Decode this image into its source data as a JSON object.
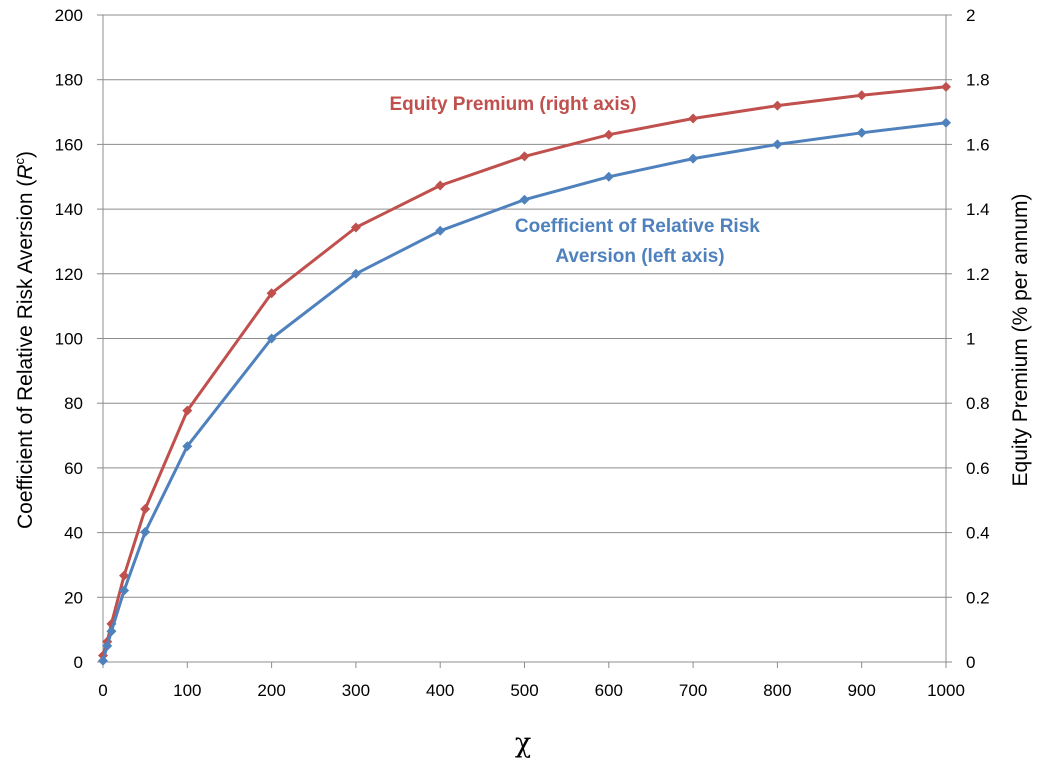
{
  "chart_data": {
    "type": "line",
    "xlabel": "χ",
    "ylabel_left": {
      "prefix": "Coefficient of Relative Risk Aversion  (",
      "italic": "R",
      "superscript": "c",
      "suffix": ")"
    },
    "ylabel_right": "Equity Premium (% per annum)",
    "xlim": [
      0,
      1000
    ],
    "ylim_left": [
      0,
      200
    ],
    "ylim_right": [
      0,
      2
    ],
    "x_ticks": [
      "0",
      "100",
      "200",
      "300",
      "400",
      "500",
      "600",
      "700",
      "800",
      "900",
      "1000"
    ],
    "y_left_ticks": [
      "0",
      "20",
      "40",
      "60",
      "80",
      "100",
      "120",
      "140",
      "160",
      "180",
      "200"
    ],
    "y_right_ticks": [
      "0",
      "0.2",
      "0.4",
      "0.6",
      "0.8",
      "1",
      "1.2",
      "1.4",
      "1.6",
      "1.8",
      "2"
    ],
    "grid": "horizontal",
    "series": [
      {
        "name": "Equity Premium (right axis)",
        "label_lines": [
          "Equity Premium (right axis)"
        ],
        "axis": "right",
        "color": "#c0504d",
        "x": [
          0,
          5,
          10,
          25,
          50,
          100,
          200,
          300,
          400,
          500,
          600,
          700,
          800,
          900,
          1000
        ],
        "values": [
          0.02,
          0.063,
          0.118,
          0.267,
          0.473,
          0.777,
          1.14,
          1.343,
          1.473,
          1.563,
          1.63,
          1.68,
          1.72,
          1.752,
          1.778
        ]
      },
      {
        "name": "Coefficient of Relative Risk Aversion (left axis)",
        "label_lines": [
          "Coefficient of Relative Risk",
          "Aversion (left axis)"
        ],
        "axis": "left",
        "color": "#4f81bd",
        "x": [
          0,
          5,
          10,
          25,
          50,
          100,
          200,
          300,
          400,
          500,
          600,
          700,
          800,
          900,
          1000
        ],
        "values": [
          0.4,
          5,
          9.5,
          22.1,
          40.2,
          66.7,
          100,
          120,
          133.3,
          142.9,
          150,
          155.6,
          160,
          163.6,
          166.7
        ]
      }
    ]
  }
}
